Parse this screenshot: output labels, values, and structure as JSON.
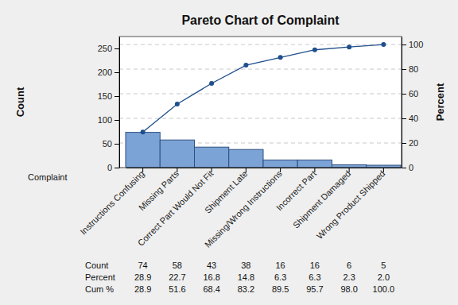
{
  "chart_data": {
    "type": "bar",
    "title": "Pareto Chart of Complaint",
    "x_label": "Complaint",
    "y_label": "Count",
    "y2_label": "Percent",
    "categories": [
      "Instructions Confusing",
      "Missing Parts",
      "Correct Part Would Not Fit",
      "Shipment Late",
      "Missing/Wrong Instructions",
      "Incorrect Part",
      "Shipment Damaged",
      "Wrong Product Shipped"
    ],
    "series": [
      {
        "name": "Count",
        "type": "bar",
        "color": "#7ba3d6",
        "values": [
          74,
          58,
          43,
          38,
          16,
          16,
          6,
          5
        ]
      },
      {
        "name": "Percent",
        "type": "table",
        "values": [
          28.9,
          22.7,
          16.8,
          14.8,
          6.3,
          6.3,
          2.3,
          2.0
        ],
        "value_labels": [
          "28.9",
          "22.7",
          "16.8",
          "14.8",
          "6.3",
          "6.3",
          "2.3",
          "2.0"
        ]
      },
      {
        "name": "Cum %",
        "type": "line",
        "axis": "y2",
        "color": "#1f4e8c",
        "marker": "circle",
        "line_style": "solid",
        "values": [
          28.9,
          51.6,
          68.4,
          83.2,
          89.5,
          95.7,
          98.0,
          100.0
        ],
        "value_labels": [
          "28.9",
          "51.6",
          "68.4",
          "83.2",
          "89.5",
          "95.7",
          "98.0",
          "100.0"
        ]
      }
    ],
    "ylim": [
      0,
      275
    ],
    "yticks": [
      0,
      50,
      100,
      150,
      200,
      250
    ],
    "y2lim": [
      0,
      106.5
    ],
    "y2ticks": [
      0,
      20,
      40,
      60,
      80,
      100
    ],
    "grid": true
  }
}
